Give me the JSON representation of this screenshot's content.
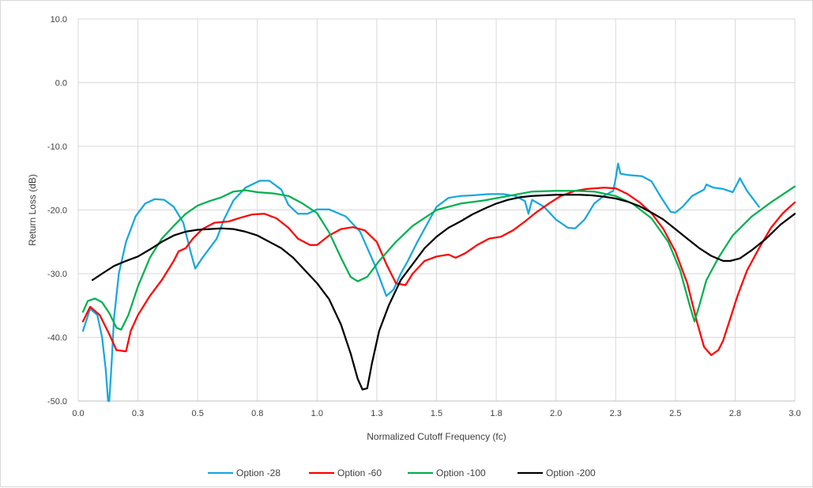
{
  "chart_data": {
    "type": "line",
    "title": "",
    "xlabel": "Normalized Cutoff Frequency (fc)",
    "ylabel": "Return Loss (dB)",
    "xlim": [
      0,
      3.0
    ],
    "ylim": [
      -50,
      10
    ],
    "x_ticks": [
      "0.0",
      "0.3",
      "0.5",
      "0.8",
      "1.0",
      "1.3",
      "1.5",
      "1.8",
      "2.0",
      "2.3",
      "2.5",
      "2.8",
      "3.0"
    ],
    "y_ticks": [
      "10.0",
      "0.0",
      "-10.0",
      "-20.0",
      "-30.0",
      "-40.0",
      "-50.0"
    ],
    "grid": true,
    "legend_position": "bottom",
    "series": [
      {
        "name": "Option -28",
        "color": "#17a8dc",
        "points": [
          [
            0.02,
            -39
          ],
          [
            0.05,
            -35.5
          ],
          [
            0.08,
            -36.5
          ],
          [
            0.1,
            -40
          ],
          [
            0.115,
            -45
          ],
          [
            0.125,
            -50
          ],
          [
            0.13,
            -50
          ],
          [
            0.14,
            -44
          ],
          [
            0.15,
            -37
          ],
          [
            0.17,
            -30
          ],
          [
            0.2,
            -25
          ],
          [
            0.24,
            -21
          ],
          [
            0.28,
            -19
          ],
          [
            0.32,
            -18.3
          ],
          [
            0.36,
            -18.4
          ],
          [
            0.4,
            -19.5
          ],
          [
            0.44,
            -22
          ],
          [
            0.47,
            -26.5
          ],
          [
            0.49,
            -29.2
          ],
          [
            0.52,
            -27.5
          ],
          [
            0.55,
            -26
          ],
          [
            0.58,
            -24.5
          ],
          [
            0.61,
            -21.5
          ],
          [
            0.65,
            -18.5
          ],
          [
            0.7,
            -16.5
          ],
          [
            0.76,
            -15.4
          ],
          [
            0.8,
            -15.4
          ],
          [
            0.85,
            -16.8
          ],
          [
            0.88,
            -19.2
          ],
          [
            0.92,
            -20.6
          ],
          [
            0.96,
            -20.6
          ],
          [
            1.0,
            -19.9
          ],
          [
            1.05,
            -19.9
          ],
          [
            1.12,
            -21
          ],
          [
            1.18,
            -23.4
          ],
          [
            1.24,
            -28.5
          ],
          [
            1.29,
            -33.5
          ],
          [
            1.32,
            -32.5
          ],
          [
            1.35,
            -30
          ],
          [
            1.38,
            -28
          ],
          [
            1.42,
            -25
          ],
          [
            1.5,
            -19.5
          ],
          [
            1.55,
            -18.1
          ],
          [
            1.6,
            -17.8
          ],
          [
            1.65,
            -17.7
          ],
          [
            1.72,
            -17.5
          ],
          [
            1.78,
            -17.5
          ],
          [
            1.83,
            -17.8
          ],
          [
            1.87,
            -18.6
          ],
          [
            1.885,
            -20.6
          ],
          [
            1.9,
            -18.4
          ],
          [
            1.95,
            -19.5
          ],
          [
            2.0,
            -21.5
          ],
          [
            2.05,
            -22.8
          ],
          [
            2.08,
            -22.9
          ],
          [
            2.12,
            -21.5
          ],
          [
            2.16,
            -19
          ],
          [
            2.2,
            -17.8
          ],
          [
            2.24,
            -17
          ],
          [
            2.25,
            -15
          ],
          [
            2.26,
            -12.7
          ],
          [
            2.27,
            -14.3
          ],
          [
            2.3,
            -14.5
          ],
          [
            2.36,
            -14.7
          ],
          [
            2.4,
            -15.5
          ],
          [
            2.44,
            -18
          ],
          [
            2.48,
            -20.3
          ],
          [
            2.5,
            -20.4
          ],
          [
            2.53,
            -19.5
          ],
          [
            2.57,
            -17.8
          ],
          [
            2.62,
            -16.8
          ],
          [
            2.63,
            -16
          ],
          [
            2.66,
            -16.5
          ],
          [
            2.7,
            -16.7
          ],
          [
            2.74,
            -17.2
          ],
          [
            2.76,
            -15.8
          ],
          [
            2.77,
            -15
          ],
          [
            2.8,
            -17
          ],
          [
            2.85,
            -19.5
          ]
        ]
      },
      {
        "name": "Option -60",
        "color": "#ff0000",
        "points": [
          [
            0.02,
            -37.5
          ],
          [
            0.05,
            -35.2
          ],
          [
            0.09,
            -36.5
          ],
          [
            0.13,
            -39.5
          ],
          [
            0.16,
            -42
          ],
          [
            0.2,
            -42.2
          ],
          [
            0.22,
            -39
          ],
          [
            0.25,
            -36.5
          ],
          [
            0.3,
            -33.5
          ],
          [
            0.35,
            -31
          ],
          [
            0.4,
            -28
          ],
          [
            0.42,
            -26.5
          ],
          [
            0.45,
            -26
          ],
          [
            0.48,
            -24.5
          ],
          [
            0.52,
            -23
          ],
          [
            0.57,
            -22
          ],
          [
            0.63,
            -21.8
          ],
          [
            0.68,
            -21.2
          ],
          [
            0.73,
            -20.7
          ],
          [
            0.78,
            -20.6
          ],
          [
            0.83,
            -21.3
          ],
          [
            0.88,
            -22.8
          ],
          [
            0.92,
            -24.5
          ],
          [
            0.97,
            -25.5
          ],
          [
            1.0,
            -25.5
          ],
          [
            1.05,
            -24
          ],
          [
            1.1,
            -23
          ],
          [
            1.15,
            -22.7
          ],
          [
            1.2,
            -23.2
          ],
          [
            1.25,
            -25
          ],
          [
            1.29,
            -28.5
          ],
          [
            1.33,
            -31.5
          ],
          [
            1.37,
            -31.8
          ],
          [
            1.4,
            -30
          ],
          [
            1.45,
            -28
          ],
          [
            1.5,
            -27.3
          ],
          [
            1.55,
            -27
          ],
          [
            1.58,
            -27.5
          ],
          [
            1.62,
            -26.8
          ],
          [
            1.67,
            -25.5
          ],
          [
            1.72,
            -24.5
          ],
          [
            1.77,
            -24.2
          ],
          [
            1.82,
            -23.2
          ],
          [
            1.87,
            -21.8
          ],
          [
            1.92,
            -20.3
          ],
          [
            1.97,
            -19
          ],
          [
            2.02,
            -17.8
          ],
          [
            2.08,
            -17
          ],
          [
            2.13,
            -16.7
          ],
          [
            2.2,
            -16.5
          ],
          [
            2.25,
            -16.6
          ],
          [
            2.3,
            -17.5
          ],
          [
            2.35,
            -18.8
          ],
          [
            2.4,
            -20.5
          ],
          [
            2.45,
            -23
          ],
          [
            2.5,
            -26.5
          ],
          [
            2.55,
            -31.5
          ],
          [
            2.59,
            -37.5
          ],
          [
            2.62,
            -41.5
          ],
          [
            2.65,
            -42.8
          ],
          [
            2.68,
            -42
          ],
          [
            2.7,
            -40.5
          ],
          [
            2.73,
            -37
          ],
          [
            2.76,
            -33.5
          ],
          [
            2.8,
            -29.5
          ],
          [
            2.85,
            -26
          ],
          [
            2.9,
            -22.8
          ],
          [
            2.95,
            -20.5
          ],
          [
            3.0,
            -18.8
          ]
        ]
      },
      {
        "name": "Option -100",
        "color": "#00b050",
        "points": [
          [
            0.02,
            -36
          ],
          [
            0.04,
            -34.3
          ],
          [
            0.07,
            -33.9
          ],
          [
            0.1,
            -34.5
          ],
          [
            0.13,
            -36.2
          ],
          [
            0.16,
            -38.5
          ],
          [
            0.18,
            -38.8
          ],
          [
            0.21,
            -36.5
          ],
          [
            0.25,
            -32
          ],
          [
            0.3,
            -27.5
          ],
          [
            0.35,
            -24.5
          ],
          [
            0.4,
            -22.5
          ],
          [
            0.45,
            -20.6
          ],
          [
            0.5,
            -19.3
          ],
          [
            0.55,
            -18.6
          ],
          [
            0.6,
            -18
          ],
          [
            0.65,
            -17.1
          ],
          [
            0.7,
            -16.9
          ],
          [
            0.75,
            -17.2
          ],
          [
            0.82,
            -17.4
          ],
          [
            0.88,
            -17.8
          ],
          [
            0.94,
            -19
          ],
          [
            1.0,
            -20.5
          ],
          [
            1.05,
            -23.5
          ],
          [
            1.1,
            -27.5
          ],
          [
            1.14,
            -30.5
          ],
          [
            1.17,
            -31.2
          ],
          [
            1.21,
            -30.5
          ],
          [
            1.26,
            -28
          ],
          [
            1.33,
            -25
          ],
          [
            1.4,
            -22.5
          ],
          [
            1.5,
            -20
          ],
          [
            1.6,
            -19
          ],
          [
            1.7,
            -18.5
          ],
          [
            1.8,
            -17.8
          ],
          [
            1.9,
            -17.1
          ],
          [
            2.0,
            -17
          ],
          [
            2.08,
            -17
          ],
          [
            2.16,
            -17.1
          ],
          [
            2.25,
            -17.8
          ],
          [
            2.32,
            -19
          ],
          [
            2.4,
            -21.3
          ],
          [
            2.47,
            -25
          ],
          [
            2.52,
            -29.5
          ],
          [
            2.56,
            -35
          ],
          [
            2.58,
            -37.5
          ],
          [
            2.6,
            -35
          ],
          [
            2.63,
            -31
          ],
          [
            2.68,
            -27.5
          ],
          [
            2.74,
            -24
          ],
          [
            2.82,
            -21
          ],
          [
            2.9,
            -18.8
          ],
          [
            3.0,
            -16.3
          ]
        ]
      },
      {
        "name": "Option -200",
        "color": "#000000",
        "points": [
          [
            0.06,
            -31
          ],
          [
            0.1,
            -30
          ],
          [
            0.15,
            -28.8
          ],
          [
            0.2,
            -28
          ],
          [
            0.25,
            -27.3
          ],
          [
            0.3,
            -26.2
          ],
          [
            0.35,
            -25
          ],
          [
            0.4,
            -24
          ],
          [
            0.45,
            -23.4
          ],
          [
            0.5,
            -23.1
          ],
          [
            0.55,
            -23
          ],
          [
            0.6,
            -22.9
          ],
          [
            0.65,
            -23
          ],
          [
            0.7,
            -23.4
          ],
          [
            0.75,
            -24
          ],
          [
            0.8,
            -25
          ],
          [
            0.85,
            -26
          ],
          [
            0.9,
            -27.5
          ],
          [
            0.95,
            -29.5
          ],
          [
            1.0,
            -31.5
          ],
          [
            1.05,
            -34
          ],
          [
            1.1,
            -38
          ],
          [
            1.14,
            -42.5
          ],
          [
            1.17,
            -46.5
          ],
          [
            1.19,
            -48.2
          ],
          [
            1.21,
            -48
          ],
          [
            1.23,
            -44
          ],
          [
            1.26,
            -39
          ],
          [
            1.3,
            -35
          ],
          [
            1.35,
            -31
          ],
          [
            1.4,
            -28.5
          ],
          [
            1.45,
            -26
          ],
          [
            1.5,
            -24.2
          ],
          [
            1.55,
            -22.8
          ],
          [
            1.6,
            -21.8
          ],
          [
            1.65,
            -20.7
          ],
          [
            1.7,
            -19.8
          ],
          [
            1.75,
            -19
          ],
          [
            1.8,
            -18.4
          ],
          [
            1.85,
            -18
          ],
          [
            1.9,
            -17.8
          ],
          [
            1.95,
            -17.7
          ],
          [
            2.0,
            -17.6
          ],
          [
            2.05,
            -17.6
          ],
          [
            2.1,
            -17.6
          ],
          [
            2.15,
            -17.7
          ],
          [
            2.2,
            -17.9
          ],
          [
            2.25,
            -18.2
          ],
          [
            2.3,
            -18.7
          ],
          [
            2.35,
            -19.4
          ],
          [
            2.4,
            -20.4
          ],
          [
            2.45,
            -21.5
          ],
          [
            2.5,
            -23
          ],
          [
            2.55,
            -24.5
          ],
          [
            2.6,
            -26
          ],
          [
            2.65,
            -27.2
          ],
          [
            2.7,
            -28
          ],
          [
            2.73,
            -28
          ],
          [
            2.77,
            -27.6
          ],
          [
            2.82,
            -26.3
          ],
          [
            2.88,
            -24.5
          ],
          [
            2.94,
            -22.3
          ],
          [
            3.0,
            -20.6
          ]
        ]
      }
    ]
  }
}
